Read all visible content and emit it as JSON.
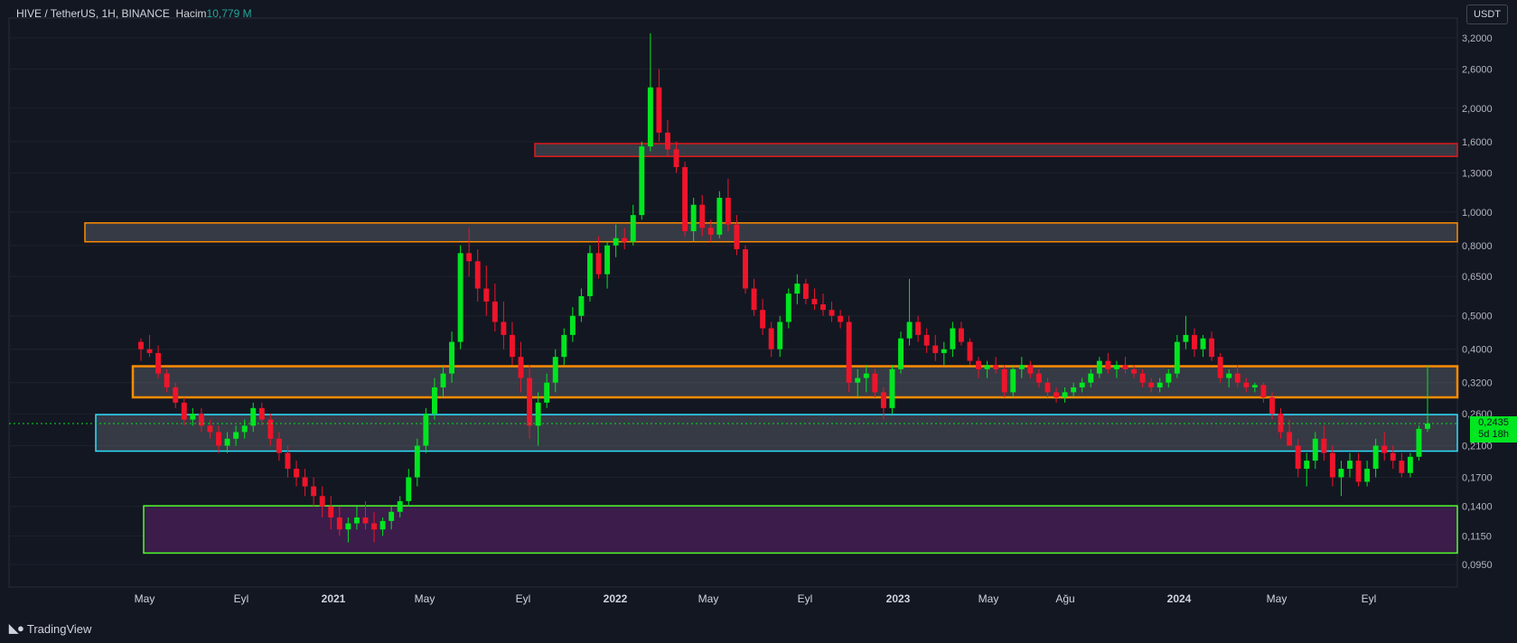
{
  "header": {
    "symbol": "HIVE / TetherUS",
    "interval": "1H",
    "exchange": "BINANCE",
    "volume_label": "Hacim",
    "volume_value": "10,779 M"
  },
  "currency_button": "USDT",
  "footer": {
    "brand": "TradingView",
    "logo": "tradingview-logo-icon"
  },
  "price_tag": {
    "price": "0,2435",
    "countdown": "5d 18h"
  },
  "colors": {
    "background": "#131722",
    "up": "#00e620",
    "down": "#f0142a",
    "orange_zone": "#ff8c00",
    "cyan_zone": "#2ee0ff",
    "green_zone": "#4dff2a",
    "red_zone": "#e01a1a",
    "purple_fill": "#3b1c4a",
    "last_price_line": "#00e620"
  },
  "chart_data": {
    "type": "candlestick",
    "scale": "log",
    "y_ticks": [
      "3,2000",
      "2,6000",
      "2,0000",
      "1,6000",
      "1,3000",
      "1,0000",
      "0,8000",
      "0,6500",
      "0,5000",
      "0,4000",
      "0,3200",
      "0,2600",
      "0,2100",
      "0,1700",
      "0,1400",
      "0,1150",
      "0,0950"
    ],
    "x_ticks": [
      "May",
      "Eyl",
      "2021",
      "May",
      "Eyl",
      "2022",
      "May",
      "Eyl",
      "2023",
      "May",
      "Ağu",
      "2024",
      "May",
      "Eyl"
    ],
    "last_price": 0.2435,
    "zones": [
      {
        "name": "red-resistance",
        "low": 1.45,
        "high": 1.58,
        "color": "#e01a1a"
      },
      {
        "name": "orange-upper",
        "low": 0.82,
        "high": 0.93,
        "color": "#ff8c00"
      },
      {
        "name": "orange-mid",
        "low": 0.29,
        "high": 0.357,
        "color": "#ff8c00"
      },
      {
        "name": "cyan-support",
        "low": 0.2025,
        "high": 0.2585,
        "color": "#2ee0ff"
      },
      {
        "name": "green-base",
        "low": 0.1025,
        "high": 0.1405,
        "color": "#4dff2a"
      }
    ],
    "candles": [
      [
        0.42,
        0.43,
        0.37,
        0.4
      ],
      [
        0.4,
        0.44,
        0.38,
        0.39
      ],
      [
        0.39,
        0.41,
        0.33,
        0.34
      ],
      [
        0.34,
        0.35,
        0.3,
        0.31
      ],
      [
        0.31,
        0.32,
        0.27,
        0.28
      ],
      [
        0.28,
        0.29,
        0.24,
        0.25
      ],
      [
        0.25,
        0.27,
        0.24,
        0.26
      ],
      [
        0.26,
        0.27,
        0.23,
        0.24
      ],
      [
        0.24,
        0.25,
        0.22,
        0.23
      ],
      [
        0.23,
        0.24,
        0.2,
        0.21
      ],
      [
        0.21,
        0.23,
        0.2,
        0.22
      ],
      [
        0.22,
        0.24,
        0.21,
        0.23
      ],
      [
        0.23,
        0.25,
        0.22,
        0.24
      ],
      [
        0.24,
        0.28,
        0.23,
        0.27
      ],
      [
        0.27,
        0.28,
        0.24,
        0.25
      ],
      [
        0.25,
        0.26,
        0.21,
        0.22
      ],
      [
        0.22,
        0.23,
        0.19,
        0.2
      ],
      [
        0.2,
        0.21,
        0.17,
        0.18
      ],
      [
        0.18,
        0.19,
        0.16,
        0.17
      ],
      [
        0.17,
        0.18,
        0.15,
        0.16
      ],
      [
        0.16,
        0.17,
        0.14,
        0.15
      ],
      [
        0.15,
        0.16,
        0.13,
        0.14
      ],
      [
        0.14,
        0.15,
        0.12,
        0.13
      ],
      [
        0.13,
        0.14,
        0.115,
        0.12
      ],
      [
        0.12,
        0.13,
        0.11,
        0.125
      ],
      [
        0.125,
        0.14,
        0.12,
        0.13
      ],
      [
        0.13,
        0.145,
        0.12,
        0.125
      ],
      [
        0.125,
        0.135,
        0.11,
        0.12
      ],
      [
        0.12,
        0.13,
        0.115,
        0.127
      ],
      [
        0.127,
        0.14,
        0.12,
        0.135
      ],
      [
        0.135,
        0.15,
        0.13,
        0.145
      ],
      [
        0.145,
        0.18,
        0.14,
        0.17
      ],
      [
        0.17,
        0.22,
        0.16,
        0.21
      ],
      [
        0.21,
        0.27,
        0.2,
        0.26
      ],
      [
        0.26,
        0.33,
        0.25,
        0.31
      ],
      [
        0.31,
        0.36,
        0.29,
        0.34
      ],
      [
        0.34,
        0.45,
        0.32,
        0.42
      ],
      [
        0.42,
        0.8,
        0.4,
        0.76
      ],
      [
        0.76,
        0.9,
        0.65,
        0.72
      ],
      [
        0.72,
        0.78,
        0.55,
        0.6
      ],
      [
        0.6,
        0.7,
        0.5,
        0.55
      ],
      [
        0.55,
        0.62,
        0.45,
        0.48
      ],
      [
        0.48,
        0.55,
        0.4,
        0.44
      ],
      [
        0.44,
        0.48,
        0.36,
        0.38
      ],
      [
        0.38,
        0.42,
        0.3,
        0.33
      ],
      [
        0.33,
        0.36,
        0.22,
        0.24
      ],
      [
        0.24,
        0.3,
        0.21,
        0.28
      ],
      [
        0.28,
        0.34,
        0.27,
        0.32
      ],
      [
        0.32,
        0.4,
        0.3,
        0.38
      ],
      [
        0.38,
        0.46,
        0.36,
        0.44
      ],
      [
        0.44,
        0.53,
        0.42,
        0.5
      ],
      [
        0.5,
        0.6,
        0.48,
        0.57
      ],
      [
        0.57,
        0.8,
        0.55,
        0.76
      ],
      [
        0.76,
        0.85,
        0.64,
        0.66
      ],
      [
        0.66,
        0.82,
        0.6,
        0.8
      ],
      [
        0.8,
        0.92,
        0.74,
        0.84
      ],
      [
        0.84,
        0.9,
        0.78,
        0.82
      ],
      [
        0.82,
        1.05,
        0.8,
        0.98
      ],
      [
        0.98,
        1.6,
        0.95,
        1.55
      ],
      [
        1.55,
        3.3,
        1.5,
        2.3
      ],
      [
        2.3,
        2.6,
        1.6,
        1.7
      ],
      [
        1.7,
        1.85,
        1.45,
        1.52
      ],
      [
        1.52,
        1.6,
        1.3,
        1.35
      ],
      [
        1.35,
        1.4,
        0.85,
        0.88
      ],
      [
        0.88,
        1.1,
        0.82,
        1.05
      ],
      [
        1.05,
        1.12,
        0.85,
        0.9
      ],
      [
        0.9,
        0.95,
        0.82,
        0.86
      ],
      [
        0.86,
        1.15,
        0.84,
        1.1
      ],
      [
        1.1,
        1.25,
        0.88,
        0.92
      ],
      [
        0.92,
        0.98,
        0.75,
        0.78
      ],
      [
        0.78,
        0.8,
        0.58,
        0.6
      ],
      [
        0.6,
        0.64,
        0.5,
        0.52
      ],
      [
        0.52,
        0.56,
        0.44,
        0.46
      ],
      [
        0.46,
        0.48,
        0.38,
        0.4
      ],
      [
        0.4,
        0.5,
        0.38,
        0.48
      ],
      [
        0.48,
        0.6,
        0.46,
        0.58
      ],
      [
        0.58,
        0.66,
        0.54,
        0.62
      ],
      [
        0.62,
        0.64,
        0.54,
        0.56
      ],
      [
        0.56,
        0.6,
        0.52,
        0.54
      ],
      [
        0.54,
        0.58,
        0.5,
        0.52
      ],
      [
        0.52,
        0.55,
        0.48,
        0.5
      ],
      [
        0.5,
        0.52,
        0.46,
        0.48
      ],
      [
        0.48,
        0.5,
        0.3,
        0.32
      ],
      [
        0.32,
        0.35,
        0.29,
        0.33
      ],
      [
        0.33,
        0.36,
        0.3,
        0.34
      ],
      [
        0.34,
        0.35,
        0.29,
        0.3
      ],
      [
        0.3,
        0.31,
        0.25,
        0.27
      ],
      [
        0.27,
        0.36,
        0.26,
        0.35
      ],
      [
        0.35,
        0.45,
        0.34,
        0.43
      ],
      [
        0.43,
        0.64,
        0.41,
        0.48
      ],
      [
        0.48,
        0.5,
        0.42,
        0.44
      ],
      [
        0.44,
        0.46,
        0.39,
        0.41
      ],
      [
        0.41,
        0.44,
        0.37,
        0.39
      ],
      [
        0.39,
        0.42,
        0.36,
        0.4
      ],
      [
        0.4,
        0.48,
        0.38,
        0.46
      ],
      [
        0.46,
        0.48,
        0.41,
        0.42
      ],
      [
        0.42,
        0.43,
        0.36,
        0.37
      ],
      [
        0.37,
        0.38,
        0.33,
        0.35
      ],
      [
        0.35,
        0.37,
        0.33,
        0.36
      ],
      [
        0.36,
        0.38,
        0.34,
        0.35
      ],
      [
        0.35,
        0.36,
        0.29,
        0.3
      ],
      [
        0.3,
        0.36,
        0.29,
        0.35
      ],
      [
        0.35,
        0.38,
        0.33,
        0.36
      ],
      [
        0.36,
        0.37,
        0.33,
        0.34
      ],
      [
        0.34,
        0.35,
        0.31,
        0.32
      ],
      [
        0.32,
        0.33,
        0.29,
        0.3
      ],
      [
        0.3,
        0.31,
        0.28,
        0.29
      ],
      [
        0.29,
        0.31,
        0.28,
        0.3
      ],
      [
        0.3,
        0.32,
        0.29,
        0.31
      ],
      [
        0.31,
        0.33,
        0.3,
        0.32
      ],
      [
        0.32,
        0.35,
        0.31,
        0.34
      ],
      [
        0.34,
        0.38,
        0.33,
        0.37
      ],
      [
        0.37,
        0.39,
        0.34,
        0.35
      ],
      [
        0.35,
        0.37,
        0.33,
        0.36
      ],
      [
        0.36,
        0.38,
        0.34,
        0.35
      ],
      [
        0.35,
        0.36,
        0.33,
        0.34
      ],
      [
        0.34,
        0.35,
        0.31,
        0.32
      ],
      [
        0.32,
        0.33,
        0.3,
        0.31
      ],
      [
        0.31,
        0.33,
        0.3,
        0.32
      ],
      [
        0.32,
        0.35,
        0.31,
        0.34
      ],
      [
        0.34,
        0.44,
        0.33,
        0.42
      ],
      [
        0.42,
        0.5,
        0.4,
        0.44
      ],
      [
        0.44,
        0.46,
        0.38,
        0.4
      ],
      [
        0.4,
        0.44,
        0.38,
        0.43
      ],
      [
        0.43,
        0.45,
        0.37,
        0.38
      ],
      [
        0.38,
        0.39,
        0.32,
        0.33
      ],
      [
        0.33,
        0.35,
        0.31,
        0.34
      ],
      [
        0.34,
        0.36,
        0.31,
        0.32
      ],
      [
        0.32,
        0.33,
        0.3,
        0.31
      ],
      [
        0.31,
        0.32,
        0.3,
        0.315
      ],
      [
        0.315,
        0.32,
        0.28,
        0.29
      ],
      [
        0.29,
        0.3,
        0.25,
        0.26
      ],
      [
        0.26,
        0.27,
        0.22,
        0.23
      ],
      [
        0.23,
        0.25,
        0.21,
        0.21
      ],
      [
        0.21,
        0.22,
        0.17,
        0.18
      ],
      [
        0.18,
        0.2,
        0.16,
        0.19
      ],
      [
        0.19,
        0.23,
        0.18,
        0.22
      ],
      [
        0.22,
        0.24,
        0.19,
        0.2
      ],
      [
        0.2,
        0.21,
        0.16,
        0.17
      ],
      [
        0.17,
        0.19,
        0.15,
        0.18
      ],
      [
        0.18,
        0.2,
        0.17,
        0.19
      ],
      [
        0.19,
        0.2,
        0.16,
        0.165
      ],
      [
        0.165,
        0.19,
        0.16,
        0.18
      ],
      [
        0.18,
        0.22,
        0.17,
        0.21
      ],
      [
        0.21,
        0.23,
        0.19,
        0.2
      ],
      [
        0.2,
        0.21,
        0.18,
        0.19
      ],
      [
        0.19,
        0.2,
        0.17,
        0.175
      ],
      [
        0.175,
        0.2,
        0.17,
        0.195
      ],
      [
        0.195,
        0.24,
        0.19,
        0.235
      ],
      [
        0.235,
        0.36,
        0.23,
        0.2435
      ]
    ]
  }
}
